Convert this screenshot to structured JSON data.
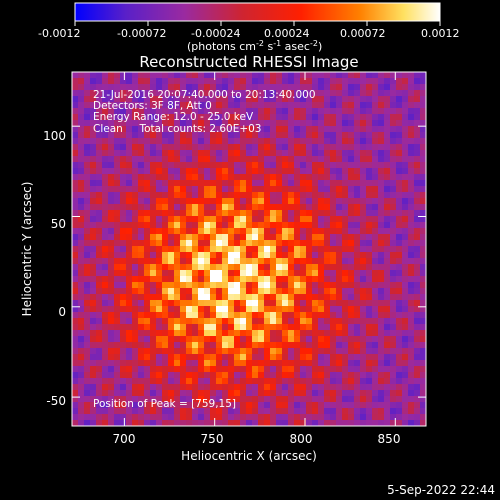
{
  "chart_data": {
    "type": "heatmap",
    "title": "Reconstructed RHESSI Image",
    "colorbar": {
      "ticks": [
        "-0.0012",
        "-0.00072",
        "-0.00024",
        "0.00024",
        "0.00072",
        "0.0012"
      ],
      "range": [
        -0.0012,
        0.0012
      ],
      "unit_prefix": "(photons cm",
      "unit_exp1": "-2",
      "unit_mid1": " s",
      "unit_exp2": "-1",
      "unit_mid2": " asec",
      "unit_exp3": "-2",
      "unit_suffix": ")",
      "colors": [
        "#0000ff",
        "#5a20c8",
        "#9a2aa0",
        "#cf2430",
        "#ff2000",
        "#ff8000",
        "#ffe060",
        "#ffffff"
      ]
    },
    "annotations": [
      "21-Jul-2016 20:07:40.000 to 20:13:40.000",
      "Detectors: 3F 8F, Att 0",
      "Energy Range: 12.0 - 25.0 keV",
      "Clean     Total counts: 2.60E+03"
    ],
    "peak_label": "Position of Peak = [759,15]",
    "peak": [
      759,
      15
    ],
    "xlabel": "Heliocentric X (arcsec)",
    "ylabel": "Heliocentric Y (arcsec)",
    "xlim": [
      671,
      867
    ],
    "ylim": [
      -66,
      130
    ],
    "xticks": [
      700,
      750,
      800,
      850
    ],
    "yticks": [
      -50,
      0,
      50,
      100
    ],
    "grid": false
  },
  "footer": {
    "date": "5-Sep-2022 22:44"
  }
}
